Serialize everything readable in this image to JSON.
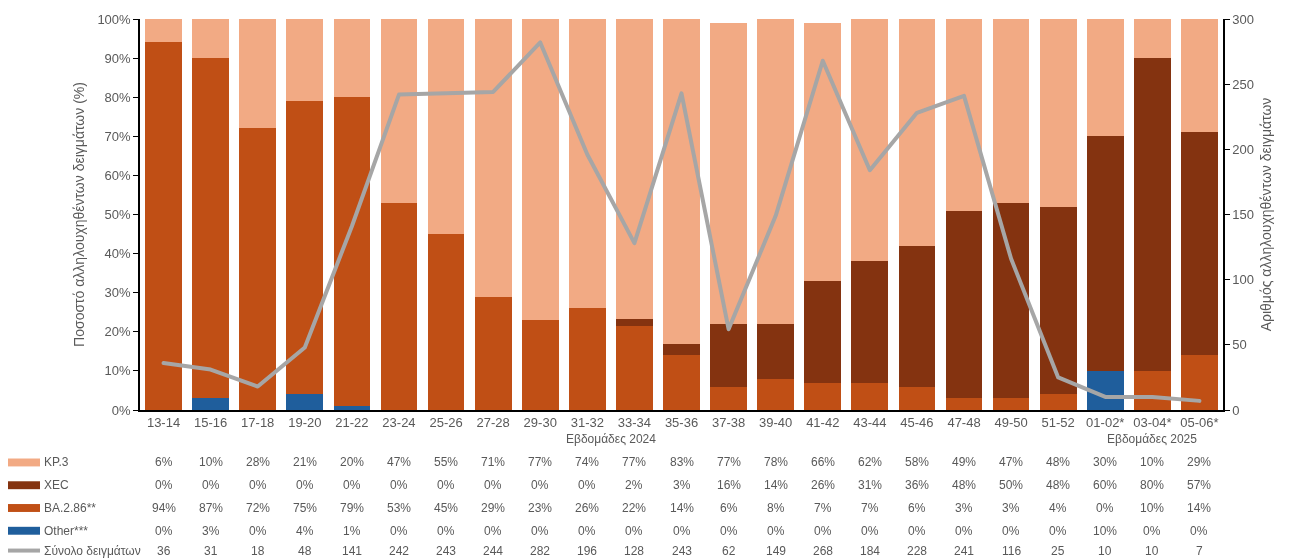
{
  "chart_data": {
    "type": "bar",
    "stacked": true,
    "categories": [
      "13-14",
      "15-16",
      "17-18",
      "19-20",
      "21-22",
      "23-24",
      "25-26",
      "27-28",
      "29-30",
      "31-32",
      "33-34",
      "35-36",
      "37-38",
      "39-40",
      "41-42",
      "43-44",
      "45-46",
      "47-48",
      "49-50",
      "51-52",
      "01-02*",
      "03-04*",
      "05-06*"
    ],
    "ylabel": "Ποσοστό αλληλουχηθέντων δειγμάτων (%)",
    "y2label": "Αριθμός αλληλουχηθέντων δειγμάτων",
    "annotations": [
      "Εβδομάδες 2024",
      "Εβδομάδες 2025"
    ],
    "ylim": [
      0,
      100
    ],
    "yticks": [
      {
        "value": 0,
        "label": "0%"
      },
      {
        "value": 10,
        "label": "10%"
      },
      {
        "value": 20,
        "label": "20%"
      },
      {
        "value": 30,
        "label": "30%"
      },
      {
        "value": 40,
        "label": "40%"
      },
      {
        "value": 50,
        "label": "50%"
      },
      {
        "value": 60,
        "label": "60%"
      },
      {
        "value": 70,
        "label": "70%"
      },
      {
        "value": 80,
        "label": "80%"
      },
      {
        "value": 90,
        "label": "90%"
      },
      {
        "value": 100,
        "label": "100%"
      }
    ],
    "y2lim": [
      0,
      300
    ],
    "y2ticks": [
      0,
      50,
      100,
      150,
      200,
      250,
      300
    ],
    "legend": "bottom left",
    "marker": "none",
    "series": [
      {
        "name": "Other***",
        "color": "#1f5e9c",
        "values": [
          0,
          3,
          0,
          4,
          1,
          0,
          0,
          0,
          0,
          0,
          0,
          0,
          0,
          0,
          0,
          0,
          0,
          0,
          0,
          0,
          10,
          0,
          0
        ],
        "value_labels": [
          "0%",
          "3%",
          "0%",
          "4%",
          "1%",
          "0%",
          "0%",
          "0%",
          "0%",
          "0%",
          "0%",
          "0%",
          "0%",
          "0%",
          "0%",
          "0%",
          "0%",
          "0%",
          "0%",
          "0%",
          "10%",
          "0%",
          "0%"
        ]
      },
      {
        "name": "BA.2.86**",
        "color": "#c04f15",
        "values": [
          94,
          87,
          72,
          75,
          79,
          53,
          45,
          29,
          23,
          26,
          21.6,
          14,
          6,
          8,
          7,
          7,
          6,
          3,
          3,
          4,
          0,
          10,
          14
        ],
        "value_labels": [
          "94%",
          "87%",
          "72%",
          "75%",
          "79%",
          "53%",
          "45%",
          "29%",
          "23%",
          "26%",
          "22%",
          "14%",
          "6%",
          "8%",
          "7%",
          "7%",
          "6%",
          "3%",
          "3%",
          "4%",
          "0%",
          "10%",
          "14%"
        ]
      },
      {
        "name": "XEC",
        "color": "#843310",
        "values": [
          0,
          0,
          0,
          0,
          0,
          0,
          0,
          0,
          0,
          0,
          1.6,
          3,
          16,
          14,
          26,
          31,
          36,
          48,
          50,
          48,
          60,
          80,
          57
        ],
        "value_labels": [
          "0%",
          "0%",
          "0%",
          "0%",
          "0%",
          "0%",
          "0%",
          "0%",
          "0%",
          "0%",
          "2%",
          "3%",
          "16%",
          "14%",
          "26%",
          "31%",
          "36%",
          "48%",
          "50%",
          "48%",
          "60%",
          "80%",
          "57%"
        ]
      },
      {
        "name": "KP.3",
        "color": "#f2aa84",
        "values": [
          6,
          10,
          28,
          21,
          20,
          47,
          55,
          71,
          77,
          74,
          76.8,
          83,
          77,
          78,
          66,
          62,
          58,
          49,
          47,
          48,
          30,
          10,
          29
        ],
        "value_labels": [
          "6%",
          "10%",
          "28%",
          "21%",
          "20%",
          "47%",
          "55%",
          "71%",
          "77%",
          "74%",
          "77%",
          "83%",
          "77%",
          "78%",
          "66%",
          "62%",
          "58%",
          "49%",
          "47%",
          "48%",
          "30%",
          "10%",
          "29%"
        ]
      },
      {
        "name": "Σύνολο δειγμάτων",
        "type": "line",
        "axis": "y2",
        "color": "#a6a6a6",
        "line_style": "solid",
        "values": [
          36,
          31,
          18,
          48,
          141,
          242,
          243,
          244,
          282,
          196,
          128,
          243,
          62,
          149,
          268,
          184,
          228,
          241,
          116,
          25,
          10,
          10,
          7
        ],
        "value_labels": [
          "36",
          "31",
          "18",
          "48",
          "141",
          "242",
          "243",
          "244",
          "282",
          "196",
          "128",
          "243",
          "62",
          "149",
          "268",
          "184",
          "228",
          "241",
          "116",
          "25",
          "10",
          "10",
          "7"
        ]
      }
    ]
  }
}
